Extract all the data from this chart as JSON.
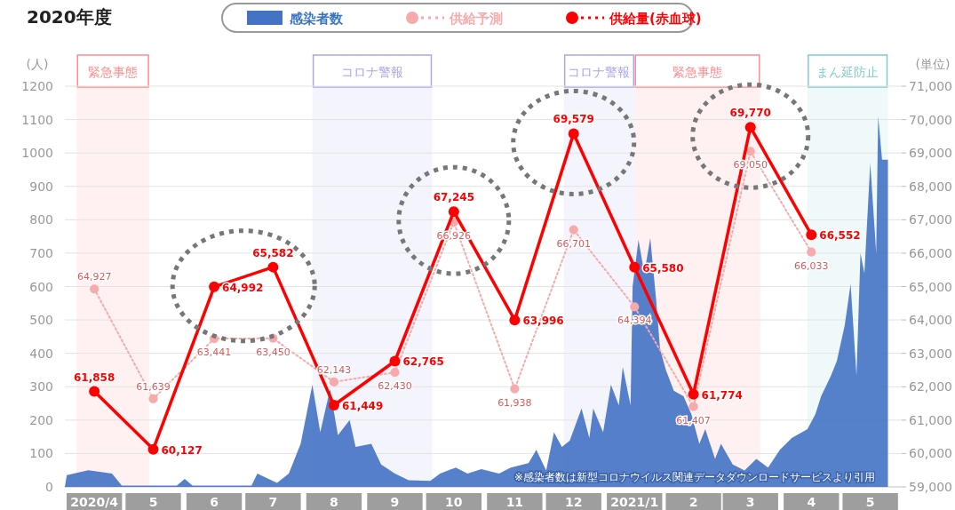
{
  "chart_data": {
    "type": "line",
    "title": "2020年度",
    "ylabel": "(人)",
    "y2label": "(単位)",
    "xlim": [
      "2020-04-01",
      "2021-06-01"
    ],
    "xticks": [
      {
        "value": "2020-04-16",
        "label": "2020/4"
      },
      {
        "value": "2020-05-16",
        "label": "5"
      },
      {
        "value": "2020-06-16",
        "label": "6"
      },
      {
        "value": "2020-07-16",
        "label": "7"
      },
      {
        "value": "2020-08-16",
        "label": "8"
      },
      {
        "value": "2020-09-16",
        "label": "9"
      },
      {
        "value": "2020-10-16",
        "label": "10"
      },
      {
        "value": "2020-11-16",
        "label": "11"
      },
      {
        "value": "2020-12-16",
        "label": "12"
      },
      {
        "value": "2021-01-16",
        "label": "2021/1"
      },
      {
        "value": "2021-02-15",
        "label": "2"
      },
      {
        "value": "2021-03-16",
        "label": "3"
      },
      {
        "value": "2021-04-16",
        "label": "4"
      },
      {
        "value": "2021-05-16",
        "label": "5"
      }
    ],
    "ylim": [
      0,
      1200
    ],
    "yticks": [
      0,
      100,
      200,
      300,
      400,
      500,
      600,
      700,
      800,
      900,
      1000,
      1100,
      1200
    ],
    "y2lim": [
      59000,
      71000
    ],
    "y2ticks": [
      {
        "value": 59000,
        "label": "59,000"
      },
      {
        "value": 60000,
        "label": "60,000"
      },
      {
        "value": 61000,
        "label": "61,000"
      },
      {
        "value": 62000,
        "label": "62,000"
      },
      {
        "value": 63000,
        "label": "63,000"
      },
      {
        "value": 64000,
        "label": "64,000"
      },
      {
        "value": 65000,
        "label": "65,000"
      },
      {
        "value": 66000,
        "label": "66,000"
      },
      {
        "value": 67000,
        "label": "67,000"
      },
      {
        "value": 68000,
        "label": "68,000"
      },
      {
        "value": 69000,
        "label": "69,000"
      },
      {
        "value": 70000,
        "label": "70,000"
      },
      {
        "value": 71000,
        "label": "71,000"
      }
    ],
    "grid": "y",
    "legend": "top",
    "bands": [
      {
        "axis": "x",
        "from": "2020-04-07",
        "to": "2020-05-14",
        "label": "緊急事態",
        "color": "#ff8c8c"
      },
      {
        "axis": "x",
        "from": "2020-08-05",
        "to": "2020-10-05",
        "label": "コロナ警報",
        "color": "#a8a8ec"
      },
      {
        "axis": "x",
        "from": "2020-12-11",
        "to": "2021-01-16",
        "label": "コロナ警報",
        "color": "#a8a8ec"
      },
      {
        "axis": "x",
        "from": "2021-01-16",
        "to": "2021-03-21",
        "label": "緊急事態",
        "color": "#ff8c8c"
      },
      {
        "axis": "x",
        "from": "2021-04-14",
        "to": "2021-05-25",
        "label": "まん延防止",
        "color": "#80cccc"
      }
    ],
    "annotations": [
      "※感染者数は新型コロナウイルス関連データダウンロードサービスより引用"
    ],
    "series": [
      {
        "name": "感染者数",
        "type": "area",
        "axis": "y",
        "color": "#4472c4",
        "x": [
          "2020-04-01",
          "2020-04-02",
          "2020-04-13",
          "2020-04-25",
          "2020-04-30",
          "2020-05-28",
          "2020-06-01",
          "2020-06-05",
          "2020-07-05",
          "2020-07-08",
          "2020-07-18",
          "2020-07-24",
          "2020-07-30",
          "2020-08-05",
          "2020-08-09",
          "2020-08-14",
          "2020-08-18",
          "2020-08-24",
          "2020-08-27",
          "2020-09-04",
          "2020-09-09",
          "2020-09-16",
          "2020-09-23",
          "2020-10-04",
          "2020-10-09",
          "2020-10-17",
          "2020-10-23",
          "2020-10-30",
          "2020-11-08",
          "2020-11-14",
          "2020-11-23",
          "2020-11-27",
          "2020-12-02",
          "2020-12-06",
          "2020-12-10",
          "2020-12-14",
          "2020-12-20",
          "2020-12-24",
          "2020-12-26",
          "2020-12-31",
          "2021-01-04",
          "2021-01-08",
          "2021-01-10",
          "2021-01-14",
          "2021-01-15",
          "2021-01-18",
          "2021-01-21",
          "2021-01-24",
          "2021-01-27",
          "2021-01-29",
          "2021-02-01",
          "2021-02-05",
          "2021-02-10",
          "2021-02-14",
          "2021-02-18",
          "2021-02-21",
          "2021-02-26",
          "2021-03-01",
          "2021-03-07",
          "2021-03-13",
          "2021-03-19",
          "2021-03-25",
          "2021-03-31",
          "2021-04-06",
          "2021-04-14",
          "2021-04-18",
          "2021-04-21",
          "2021-04-26",
          "2021-04-29",
          "2021-05-03",
          "2021-05-06",
          "2021-05-09",
          "2021-05-11",
          "2021-05-13",
          "2021-05-16",
          "2021-05-19",
          "2021-05-20",
          "2021-05-22",
          "2021-05-25"
        ],
        "values": [
          0,
          35,
          50,
          40,
          4,
          4,
          24,
          4,
          4,
          40,
          12,
          40,
          129,
          306,
          164,
          293,
          155,
          200,
          120,
          129,
          67,
          40,
          20,
          18,
          40,
          58,
          40,
          53,
          40,
          58,
          71,
          111,
          49,
          164,
          120,
          138,
          235,
          146,
          235,
          164,
          306,
          244,
          359,
          244,
          600,
          740,
          640,
          745,
          560,
          413,
          350,
          288,
          271,
          217,
          129,
          173,
          84,
          129,
          67,
          49,
          84,
          58,
          111,
          146,
          173,
          217,
          271,
          333,
          377,
          484,
          608,
          333,
          700,
          640,
          970,
          700,
          1110,
          980,
          980
        ]
      },
      {
        "name": "供給予測",
        "axis": "y2",
        "color": "#f7aaaa",
        "line_style": "dotted",
        "marker": "circle",
        "x": [
          "2020-04-16",
          "2020-05-16",
          "2020-06-16",
          "2020-07-16",
          "2020-08-16",
          "2020-09-16",
          "2020-10-16",
          "2020-11-16",
          "2020-12-16",
          "2021-01-16",
          "2021-02-15",
          "2021-03-16",
          "2021-04-16"
        ],
        "values": [
          64927,
          61639,
          63441,
          63450,
          62143,
          62430,
          66926,
          61938,
          66701,
          64394,
          61407,
          69050,
          66033
        ],
        "value_labels": [
          "64,927",
          "61,639",
          "63,441",
          "63,450",
          "62,143",
          "62,430",
          "66,926",
          "61,938",
          "66,701",
          "64,394",
          "61,407",
          "69,050",
          "66,033"
        ]
      },
      {
        "name": "供給量(赤血球)",
        "axis": "y2",
        "color": "#ff0000",
        "line_style": "solid",
        "marker": "circle",
        "x": [
          "2020-04-16",
          "2020-05-16",
          "2020-06-16",
          "2020-07-16",
          "2020-08-16",
          "2020-09-16",
          "2020-10-16",
          "2020-11-16",
          "2020-12-16",
          "2021-01-16",
          "2021-02-15",
          "2021-03-16",
          "2021-04-16"
        ],
        "values": [
          61858,
          60127,
          64992,
          65582,
          61449,
          62765,
          67245,
          63996,
          69579,
          65580,
          61774,
          69770,
          66552
        ],
        "value_labels": [
          "61,858",
          "60,127",
          "64,992",
          "65,582",
          "61,449",
          "62,765",
          "67,245",
          "63,996",
          "69,579",
          "65,580",
          "61,774",
          "69,770",
          "66,552"
        ]
      }
    ]
  }
}
